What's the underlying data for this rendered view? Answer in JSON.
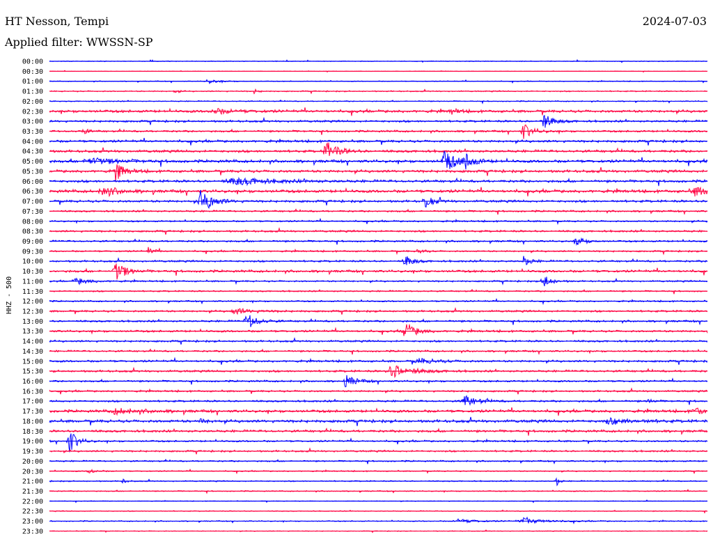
{
  "header": {
    "station": "HT Nesson, Tempi",
    "date": "2024-07-03",
    "filter": "Applied filter: WWSSN-SP"
  },
  "chart_data": {
    "type": "line",
    "title": "HT Nesson, Tempi",
    "ylabel": "HHZ - 500",
    "colors": {
      "even": "#0000ff",
      "odd": "#ff0040"
    },
    "rows": [
      "00:00",
      "00:30",
      "01:00",
      "01:30",
      "02:00",
      "02:30",
      "03:00",
      "03:30",
      "04:00",
      "04:30",
      "05:00",
      "05:30",
      "06:00",
      "06:30",
      "07:00",
      "07:30",
      "08:00",
      "08:30",
      "09:00",
      "09:30",
      "10:00",
      "10:30",
      "11:00",
      "11:30",
      "12:00",
      "12:30",
      "13:00",
      "13:30",
      "14:00",
      "14:30",
      "15:00",
      "15:30",
      "16:00",
      "16:30",
      "17:00",
      "17:30",
      "18:00",
      "18:30",
      "19:00",
      "19:30",
      "20:00",
      "20:30",
      "21:00",
      "21:30",
      "22:00",
      "22:30",
      "23:00",
      "23:30"
    ],
    "noise_level": [
      0.5,
      0.3,
      0.6,
      0.8,
      0.7,
      1.8,
      1.4,
      1.3,
      1.6,
      1.7,
      1.9,
      1.8,
      1.7,
      2.0,
      1.6,
      1.2,
      1.1,
      1.3,
      1.2,
      1.1,
      1.3,
      1.6,
      1.1,
      1.0,
      1.0,
      1.3,
      1.3,
      1.4,
      1.3,
      1.2,
      1.4,
      1.4,
      1.2,
      1.2,
      1.3,
      1.8,
      1.9,
      1.6,
      1.2,
      1.2,
      1.0,
      0.8,
      0.8,
      0.7,
      0.5,
      0.6,
      0.7,
      0.5
    ],
    "events": [
      {
        "row": 2,
        "t": 0.24,
        "amp": 3,
        "width": 0.02
      },
      {
        "row": 3,
        "t": 0.19,
        "amp": 3,
        "width": 0.006
      },
      {
        "row": 3,
        "t": 0.31,
        "amp": 4,
        "width": 0.006
      },
      {
        "row": 5,
        "t": 0.25,
        "amp": 4,
        "width": 0.03
      },
      {
        "row": 5,
        "t": 0.61,
        "amp": 4,
        "width": 0.012
      },
      {
        "row": 6,
        "t": 0.75,
        "amp": 11,
        "width": 0.015
      },
      {
        "row": 7,
        "t": 0.05,
        "amp": 5,
        "width": 0.008
      },
      {
        "row": 7,
        "t": 0.72,
        "amp": 11,
        "width": 0.015
      },
      {
        "row": 9,
        "t": 0.42,
        "amp": 14,
        "width": 0.018
      },
      {
        "row": 10,
        "t": 0.06,
        "amp": 5,
        "width": 0.04
      },
      {
        "row": 10,
        "t": 0.6,
        "amp": 16,
        "width": 0.018
      },
      {
        "row": 10,
        "t": 0.63,
        "amp": 10,
        "width": 0.015
      },
      {
        "row": 11,
        "t": 0.1,
        "amp": 14,
        "width": 0.014
      },
      {
        "row": 12,
        "t": 0.28,
        "amp": 5,
        "width": 0.06
      },
      {
        "row": 13,
        "t": 0.08,
        "amp": 9,
        "width": 0.02
      },
      {
        "row": 13,
        "t": 0.98,
        "amp": 6,
        "width": 0.03
      },
      {
        "row": 14,
        "t": 0.23,
        "amp": 17,
        "width": 0.018
      },
      {
        "row": 14,
        "t": 0.57,
        "amp": 10,
        "width": 0.012
      },
      {
        "row": 18,
        "t": 0.8,
        "amp": 8,
        "width": 0.012
      },
      {
        "row": 19,
        "t": 0.15,
        "amp": 5,
        "width": 0.008
      },
      {
        "row": 19,
        "t": 0.56,
        "amp": 5,
        "width": 0.008
      },
      {
        "row": 20,
        "t": 0.54,
        "amp": 9,
        "width": 0.012
      },
      {
        "row": 20,
        "t": 0.72,
        "amp": 8,
        "width": 0.01
      },
      {
        "row": 21,
        "t": 0.1,
        "amp": 16,
        "width": 0.014
      },
      {
        "row": 22,
        "t": 0.04,
        "amp": 5,
        "width": 0.02
      },
      {
        "row": 22,
        "t": 0.75,
        "amp": 11,
        "width": 0.012
      },
      {
        "row": 25,
        "t": 0.28,
        "amp": 4,
        "width": 0.03
      },
      {
        "row": 26,
        "t": 0.3,
        "amp": 12,
        "width": 0.016
      },
      {
        "row": 27,
        "t": 0.54,
        "amp": 13,
        "width": 0.016
      },
      {
        "row": 30,
        "t": 0.56,
        "amp": 4,
        "width": 0.03
      },
      {
        "row": 31,
        "t": 0.52,
        "amp": 10,
        "width": 0.03
      },
      {
        "row": 32,
        "t": 0.45,
        "amp": 9,
        "width": 0.016
      },
      {
        "row": 34,
        "t": 0.63,
        "amp": 8,
        "width": 0.02
      },
      {
        "row": 34,
        "t": 0.91,
        "amp": 5,
        "width": 0.006
      },
      {
        "row": 35,
        "t": 0.1,
        "amp": 4,
        "width": 0.04
      },
      {
        "row": 35,
        "t": 0.98,
        "amp": 4,
        "width": 0.03
      },
      {
        "row": 36,
        "t": 0.23,
        "amp": 5,
        "width": 0.008
      },
      {
        "row": 36,
        "t": 0.85,
        "amp": 4,
        "width": 0.04
      },
      {
        "row": 38,
        "t": 0.03,
        "amp": 17,
        "width": 0.012
      },
      {
        "row": 41,
        "t": 0.06,
        "amp": 4,
        "width": 0.01
      },
      {
        "row": 42,
        "t": 0.11,
        "amp": 4,
        "width": 0.006
      },
      {
        "row": 42,
        "t": 0.77,
        "amp": 9,
        "width": 0.004
      },
      {
        "row": 46,
        "t": 0.62,
        "amp": 3,
        "width": 0.03
      },
      {
        "row": 46,
        "t": 0.72,
        "amp": 4,
        "width": 0.04
      }
    ]
  }
}
